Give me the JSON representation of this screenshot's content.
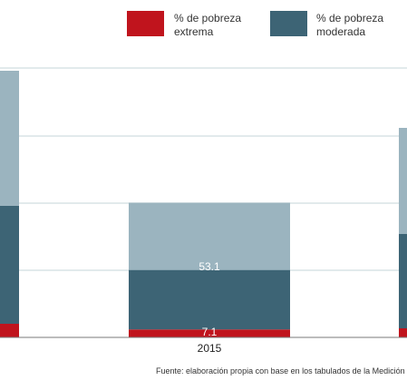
{
  "chart_data": {
    "type": "bar",
    "stacked": true,
    "categories": [
      "",
      "2015",
      ""
    ],
    "series": [
      {
        "name": "% de pobreza extrema",
        "values": [
          null,
          7.1,
          null
        ]
      },
      {
        "name": "% de pobreza moderada",
        "values": [
          null,
          53.1,
          null
        ]
      },
      {
        "name": "",
        "values": [
          null,
          60.1,
          null
        ]
      }
    ],
    "ylim": [
      0,
      160
    ],
    "grid": true,
    "legend": "top-right"
  },
  "legend": {
    "extreme": "% de pobreza extrema",
    "moderate": "% de pobreza moderada"
  },
  "labels": {
    "extreme_value": "7.1",
    "moderate_value": "53.1",
    "upper_value": "60.1",
    "year": "2015"
  },
  "source": "Fuente: elaboración propia con base en los tabulados de la Medición Multidi",
  "colors": {
    "extreme": "#c0141d",
    "moderate": "#3d6475",
    "upper": "#9bb4bf",
    "grid": "#c5d4da",
    "axis": "#7a7a7a"
  }
}
